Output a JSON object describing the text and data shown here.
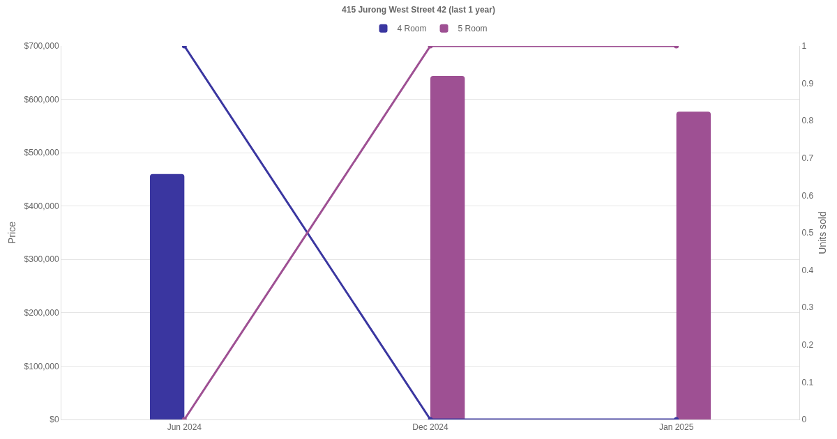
{
  "chart_data": {
    "type": "bar",
    "title": "415 Jurong West Street 42 (last 1 year)",
    "ylabel": "Price",
    "y2label": "Units sold",
    "categories": [
      "Jun 2024",
      "Dec 2024",
      "Jan 2025"
    ],
    "series": [
      {
        "name": "4 Room",
        "color": "#3a36a0",
        "values": [
          460000,
          null,
          null
        ]
      },
      {
        "name": "5 Room",
        "color": "#9e5093",
        "values": [
          null,
          644000,
          577000
        ]
      },
      {
        "type": "line",
        "axis": "y2",
        "color": "#3a36a0",
        "values": [
          1,
          0,
          0
        ]
      },
      {
        "type": "line",
        "axis": "y2",
        "color": "#9e5093",
        "values": [
          0,
          1,
          1
        ]
      }
    ],
    "ylim": [
      0,
      700000
    ],
    "yticks": [
      {
        "value": 0,
        "label": "$0"
      },
      {
        "value": 100000,
        "label": "$100,000"
      },
      {
        "value": 200000,
        "label": "$200,000"
      },
      {
        "value": 300000,
        "label": "$300,000"
      },
      {
        "value": 400000,
        "label": "$400,000"
      },
      {
        "value": 500000,
        "label": "$500,000"
      },
      {
        "value": 600000,
        "label": "$600,000"
      },
      {
        "value": 700000,
        "label": "$700,000"
      }
    ],
    "y2lim": [
      0,
      1
    ],
    "y2ticks": [
      0,
      0.1,
      0.2,
      0.3,
      0.4,
      0.5,
      0.6,
      0.7,
      0.8,
      0.9,
      1
    ],
    "grid": "y",
    "legend": "top",
    "marker": "circle",
    "line_style": "solid"
  }
}
